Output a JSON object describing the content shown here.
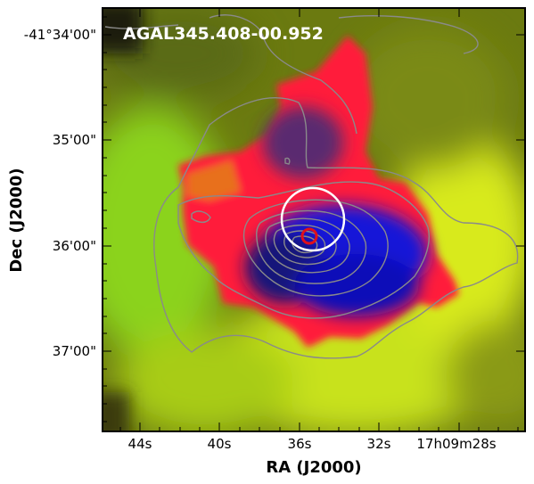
{
  "figure": {
    "title": "AGAL345.408-00.952",
    "xlabel": "RA (J2000)",
    "ylabel": "Dec (J2000)",
    "x_ticks": [
      "44s",
      "40s",
      "36s",
      "32s",
      "17h09m28s"
    ],
    "y_ticks": [
      "-41°34'00\"",
      "35'00\"",
      "36'00\"",
      "37'00\""
    ],
    "colors": {
      "frame": "#000000",
      "contour": "#8a8a8a",
      "beam_circle": "#ffffff",
      "source_marker": "#e0101a",
      "rgb_red_component": "#ff1a2e",
      "rgb_green_component": "#7fdc1a",
      "rgb_blue_component": "#1010e0",
      "rgb_yellow_blend": "#e8f020"
    },
    "image_type": "three-color composite with grey contour overlay"
  }
}
